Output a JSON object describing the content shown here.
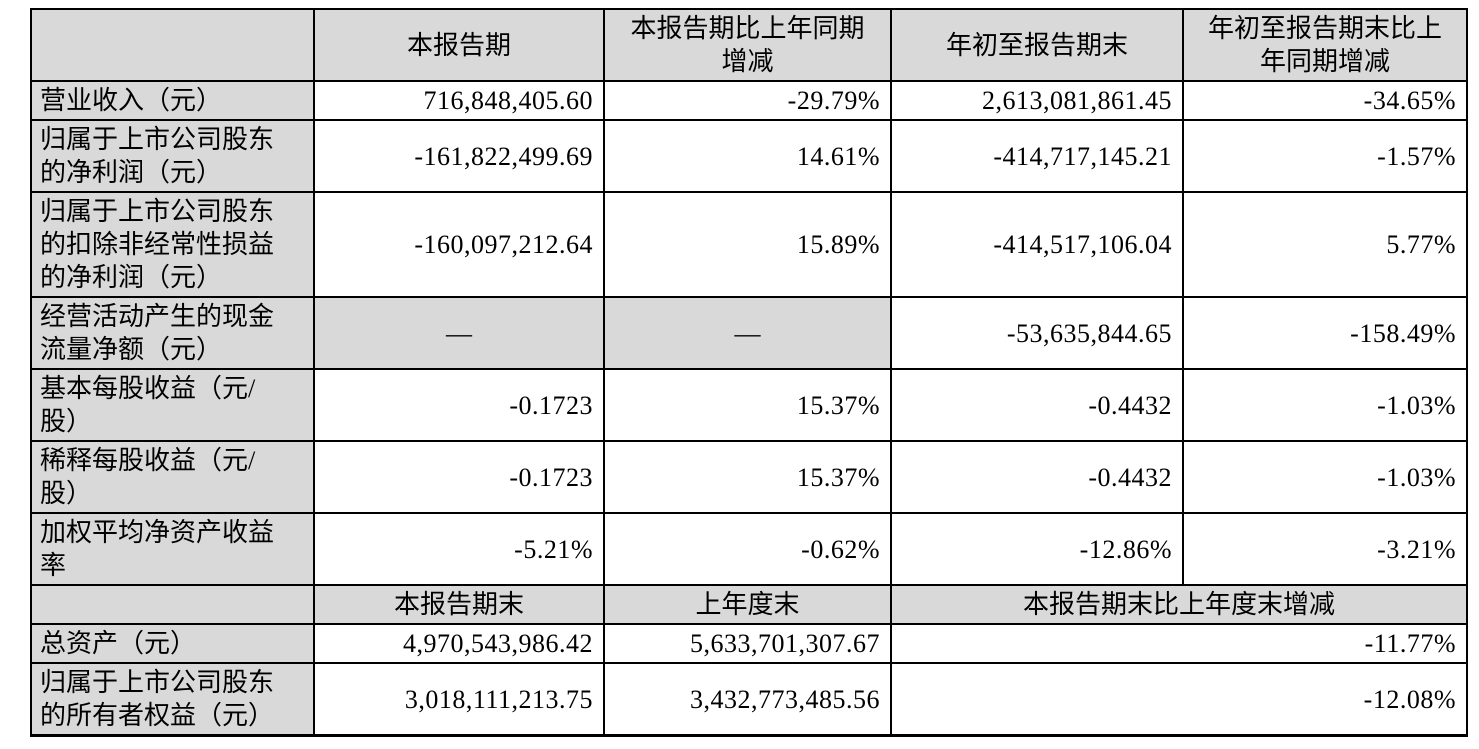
{
  "colors": {
    "cell_shade": "#d9d9d9",
    "border": "#000000",
    "text": "#000000",
    "background": "#ffffff"
  },
  "table": {
    "rows": [
      {
        "cells": [
          {
            "text": "",
            "kind": "header"
          },
          {
            "text": "本报告期",
            "kind": "header"
          },
          {
            "text": "本报告期比上年同期增减",
            "kind": "header"
          },
          {
            "text": "年初至报告期末",
            "kind": "header"
          },
          {
            "text": "年初至报告期末比上年同期增减",
            "kind": "header"
          }
        ]
      },
      {
        "cells": [
          {
            "text": "营业收入（元）",
            "kind": "label"
          },
          {
            "text": "716,848,405.60",
            "kind": "num"
          },
          {
            "text": "-29.79%",
            "kind": "num"
          },
          {
            "text": "2,613,081,861.45",
            "kind": "num"
          },
          {
            "text": "-34.65%",
            "kind": "num"
          }
        ]
      },
      {
        "cells": [
          {
            "text": "归属于上市公司股东的净利润（元）",
            "kind": "label"
          },
          {
            "text": "-161,822,499.69",
            "kind": "num"
          },
          {
            "text": "14.61%",
            "kind": "num"
          },
          {
            "text": "-414,717,145.21",
            "kind": "num"
          },
          {
            "text": "-1.57%",
            "kind": "num"
          }
        ]
      },
      {
        "cells": [
          {
            "text": "归属于上市公司股东的扣除非经常性损益的净利润（元）",
            "kind": "label"
          },
          {
            "text": "-160,097,212.64",
            "kind": "num"
          },
          {
            "text": "15.89%",
            "kind": "num"
          },
          {
            "text": "-414,517,106.04",
            "kind": "num"
          },
          {
            "text": "5.77%",
            "kind": "num"
          }
        ]
      },
      {
        "cells": [
          {
            "text": "经营活动产生的现金流量净额（元）",
            "kind": "label"
          },
          {
            "text": "—",
            "kind": "dash"
          },
          {
            "text": "—",
            "kind": "dash"
          },
          {
            "text": "-53,635,844.65",
            "kind": "num"
          },
          {
            "text": "-158.49%",
            "kind": "num"
          }
        ]
      },
      {
        "cells": [
          {
            "text": "基本每股收益（元/股）",
            "kind": "label"
          },
          {
            "text": "-0.1723",
            "kind": "num"
          },
          {
            "text": "15.37%",
            "kind": "num"
          },
          {
            "text": "-0.4432",
            "kind": "num"
          },
          {
            "text": "-1.03%",
            "kind": "num"
          }
        ]
      },
      {
        "cells": [
          {
            "text": "稀释每股收益（元/股）",
            "kind": "label"
          },
          {
            "text": "-0.1723",
            "kind": "num"
          },
          {
            "text": "15.37%",
            "kind": "num"
          },
          {
            "text": "-0.4432",
            "kind": "num"
          },
          {
            "text": "-1.03%",
            "kind": "num"
          }
        ]
      },
      {
        "cells": [
          {
            "text": "加权平均净资产收益率",
            "kind": "label"
          },
          {
            "text": "-5.21%",
            "kind": "num"
          },
          {
            "text": "-0.62%",
            "kind": "num"
          },
          {
            "text": "-12.86%",
            "kind": "num"
          },
          {
            "text": "-3.21%",
            "kind": "num"
          }
        ]
      },
      {
        "cells": [
          {
            "text": "",
            "kind": "header"
          },
          {
            "text": "本报告期末",
            "kind": "header"
          },
          {
            "text": "上年度末",
            "kind": "header"
          },
          {
            "text": "本报告期末比上年度末增减",
            "kind": "header",
            "colspan": 2
          }
        ]
      },
      {
        "cells": [
          {
            "text": "总资产（元）",
            "kind": "label"
          },
          {
            "text": "4,970,543,986.42",
            "kind": "num"
          },
          {
            "text": "5,633,701,307.67",
            "kind": "num"
          },
          {
            "text": "-11.77%",
            "kind": "num",
            "colspan": 2
          }
        ]
      },
      {
        "cells": [
          {
            "text": "归属于上市公司股东的所有者权益（元）",
            "kind": "label"
          },
          {
            "text": "3,018,111,213.75",
            "kind": "num"
          },
          {
            "text": "3,432,773,485.56",
            "kind": "num"
          },
          {
            "text": "-12.08%",
            "kind": "num",
            "colspan": 2
          }
        ]
      }
    ]
  }
}
